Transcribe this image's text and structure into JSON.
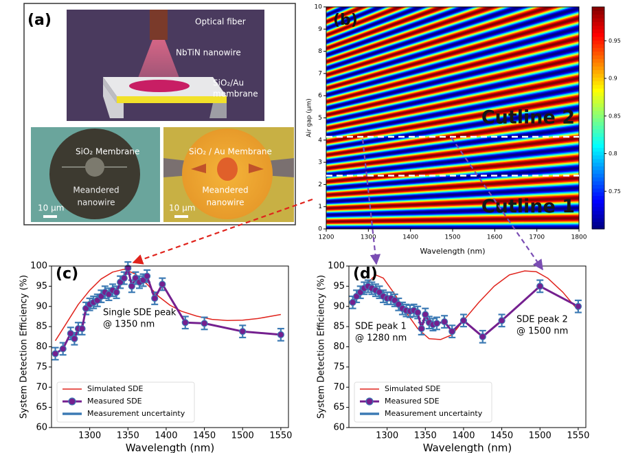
{
  "panel_a": {
    "label": "(a)",
    "schematic": {
      "fiber": "Optical fiber",
      "nanowire": "NbTiN nanowire",
      "membrane": [
        "SiO₂/Au",
        "membrane"
      ]
    },
    "images": [
      {
        "title": "SiO₂ Membrane",
        "caption": [
          "Meandered",
          "nanowire"
        ],
        "scale": "10 μm"
      },
      {
        "title": "SiO₂ / Au Membrane",
        "caption": [
          "Meandered",
          "nanowire"
        ],
        "scale": "10 μm"
      }
    ]
  },
  "chart_data": [
    {
      "type": "heatmap",
      "label": "(b)",
      "xlabel": "Wavelength (nm)",
      "ylabel": "Air gap (μm)",
      "xlim": [
        1200,
        1800
      ],
      "xticks": [
        1200,
        1300,
        1400,
        1500,
        1600,
        1700,
        1800
      ],
      "ylim": [
        0,
        10
      ],
      "yticks": [
        0,
        1,
        2,
        3,
        4,
        5,
        6,
        7,
        8,
        9,
        10
      ],
      "colormap": "jet",
      "clim": [
        0.7,
        0.995
      ],
      "cticks": [
        0.75,
        0.8,
        0.85,
        0.9,
        0.95
      ],
      "cutlines": [
        {
          "label": "Cutline 1",
          "value": 2.4
        },
        {
          "label": "Cutline 2",
          "value": 4.15
        }
      ]
    },
    {
      "type": "line",
      "label": "(c)",
      "xlabel": "Wavelength (nm)",
      "ylabel": "System Detection Efficiency (%)",
      "xlim": [
        1250,
        1560
      ],
      "xticks": [
        1300,
        1350,
        1400,
        1450,
        1500,
        1550
      ],
      "ylim": [
        60,
        100
      ],
      "yticks": [
        60,
        65,
        70,
        75,
        80,
        85,
        90,
        95,
        100
      ],
      "series": [
        {
          "name": "Simulated SDE",
          "color": "#e0231c",
          "x": [
            1255,
            1270,
            1285,
            1300,
            1315,
            1330,
            1345,
            1360,
            1375,
            1390,
            1405,
            1420,
            1440,
            1460,
            1480,
            1500,
            1520,
            1550
          ],
          "values": [
            81.5,
            86,
            90.5,
            94,
            96.8,
            98.5,
            99.2,
            98,
            95.5,
            92.5,
            90.3,
            88.8,
            87.6,
            86.8,
            86.5,
            86.6,
            87,
            88
          ]
        },
        {
          "name": "Measured SDE",
          "color": "#74208f",
          "x": [
            1255,
            1265,
            1275,
            1280,
            1285,
            1290,
            1295,
            1300,
            1305,
            1310,
            1315,
            1320,
            1325,
            1330,
            1335,
            1340,
            1345,
            1350,
            1355,
            1360,
            1365,
            1370,
            1375,
            1385,
            1395,
            1425,
            1450,
            1500,
            1550
          ],
          "values": [
            78.3,
            79.5,
            83.3,
            82,
            84.5,
            84.5,
            89.5,
            90.5,
            91,
            91.5,
            92.5,
            93.5,
            93,
            94,
            93.5,
            96,
            97,
            99.5,
            95,
            97,
            96,
            96.5,
            97.5,
            92,
            95.5,
            86,
            85.8,
            83.8,
            83
          ],
          "errors": [
            1.5,
            1.5,
            1.5,
            1.5,
            1.5,
            1.5,
            1.5,
            1.5,
            1.5,
            1.5,
            1.5,
            1.5,
            1.5,
            1.5,
            1.5,
            1.5,
            1.5,
            1.5,
            1.5,
            1.5,
            1.5,
            1.5,
            1.5,
            1.5,
            1.5,
            1.5,
            1.5,
            1.5,
            1.5
          ]
        }
      ],
      "uncertainty": {
        "name": "Measurement uncertainty",
        "color": "#3c7ab4"
      },
      "annotations": [
        [
          "Single SDE peak",
          "@ 1350 nm"
        ]
      ]
    },
    {
      "type": "line",
      "label": "(d)",
      "xlabel": "Wavelength (nm)",
      "ylabel": "System Detection Efficiency (%)",
      "xlim": [
        1250,
        1560
      ],
      "xticks": [
        1300,
        1350,
        1400,
        1450,
        1500,
        1550
      ],
      "ylim": [
        60,
        100
      ],
      "yticks": [
        60,
        65,
        70,
        75,
        80,
        85,
        90,
        95,
        100
      ],
      "series": [
        {
          "name": "Simulated SDE",
          "color": "#e0231c",
          "x": [
            1255,
            1270,
            1285,
            1295,
            1310,
            1325,
            1340,
            1355,
            1370,
            1385,
            1400,
            1420,
            1440,
            1460,
            1480,
            1495,
            1510,
            1530,
            1550
          ],
          "values": [
            90,
            95,
            97.8,
            97,
            93,
            88.5,
            84.5,
            82,
            81.8,
            83,
            86.5,
            91,
            95,
            97.8,
            98.8,
            98.6,
            97,
            93.5,
            89
          ]
        },
        {
          "name": "Measured SDE",
          "color": "#74208f",
          "x": [
            1255,
            1260,
            1265,
            1270,
            1275,
            1280,
            1285,
            1290,
            1295,
            1300,
            1305,
            1310,
            1315,
            1320,
            1325,
            1330,
            1335,
            1340,
            1345,
            1350,
            1355,
            1360,
            1365,
            1375,
            1385,
            1400,
            1425,
            1450,
            1500,
            1550
          ],
          "values": [
            91,
            92.5,
            93.5,
            94.5,
            95,
            94.5,
            94,
            93.5,
            92.5,
            92,
            92,
            91.5,
            90.5,
            89.5,
            89,
            88.8,
            89,
            88.5,
            84.5,
            88,
            86,
            85.5,
            85.8,
            86.2,
            83.8,
            86.5,
            82.5,
            86.5,
            95,
            90
          ],
          "errors": [
            1.5,
            1.5,
            1.5,
            1.5,
            1.5,
            1.5,
            1.5,
            1.5,
            1.5,
            1.5,
            1.5,
            1.5,
            1.5,
            1.5,
            1.5,
            1.5,
            1.5,
            1.5,
            1.5,
            1.5,
            1.5,
            1.5,
            1.5,
            1.5,
            1.5,
            1.5,
            1.5,
            1.5,
            1.5,
            1.5
          ]
        }
      ],
      "uncertainty": {
        "name": "Measurement uncertainty",
        "color": "#3c7ab4"
      },
      "annotations": [
        [
          "SDE peak 1",
          "@ 1280 nm"
        ],
        [
          "SDE peak 2",
          "@ 1500 nm"
        ]
      ]
    }
  ]
}
